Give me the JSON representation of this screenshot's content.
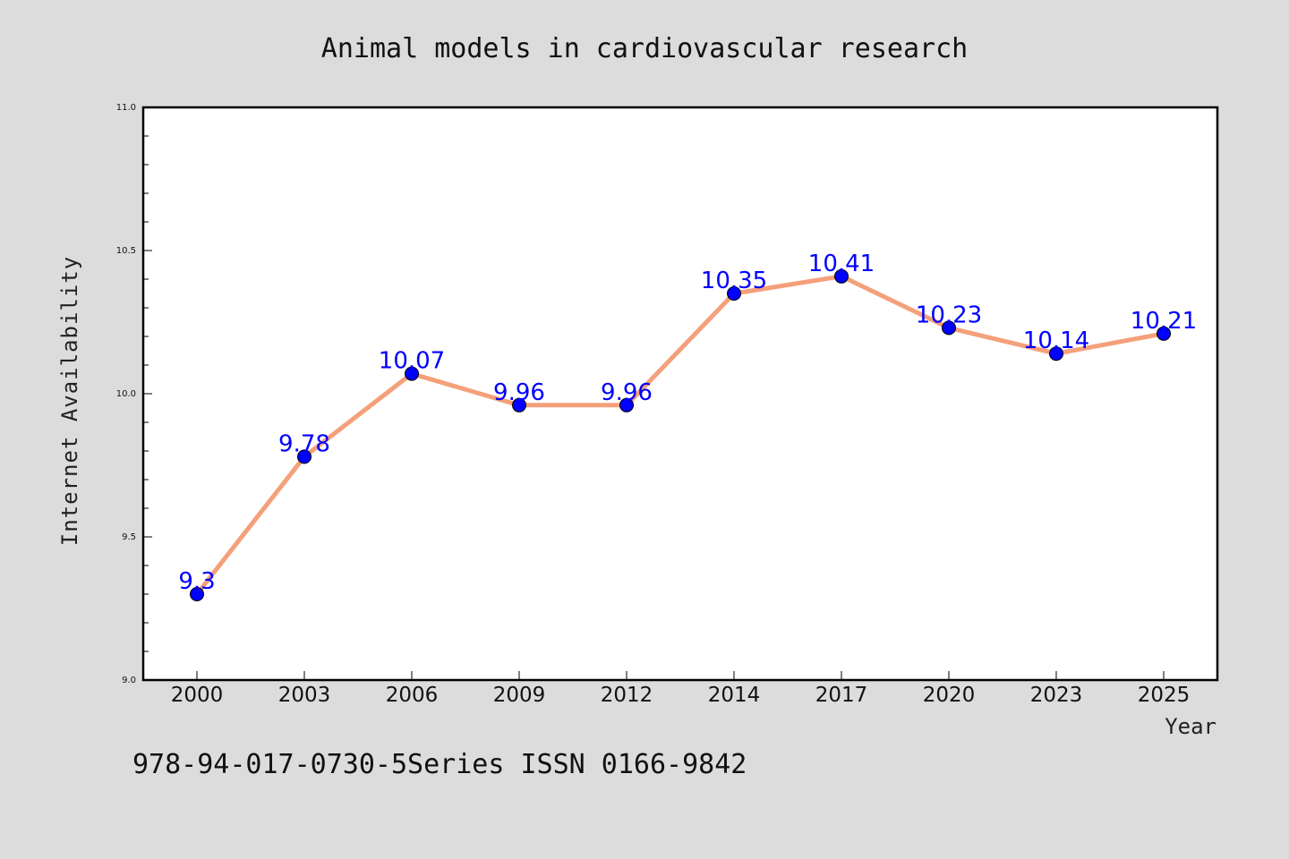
{
  "chart_data": {
    "type": "line",
    "title": "Animal models in cardiovascular research",
    "xlabel": "Year",
    "ylabel": "Internet Availability",
    "categories": [
      "2000",
      "2003",
      "2006",
      "2009",
      "2012",
      "2014",
      "2017",
      "2020",
      "2023",
      "2025"
    ],
    "series": [
      {
        "values": [
          9.3,
          9.78,
          10.07,
          9.96,
          9.96,
          10.35,
          10.41,
          10.23,
          10.14,
          10.21
        ],
        "data_labels": [
          "9.3",
          "9.78",
          "10.07",
          "9.96",
          "9.96",
          "10.35",
          "10.41",
          "10.23",
          "10.14",
          "10.21"
        ],
        "line_color": "#f4a07a",
        "marker_color": "#0000ff"
      }
    ],
    "ylim": [
      9.0,
      11.0
    ],
    "yticks": [
      "9.0",
      "9.5",
      "10.0",
      "10.5",
      "11.0"
    ],
    "ytick_values": [
      9.0,
      9.5,
      10.0,
      10.5,
      11.0
    ],
    "y_minor_step": 0.1,
    "grid": false,
    "legend": "none"
  },
  "footer": {
    "text": "978-94-017-0730-5Series ISSN 0166-9842"
  },
  "colors": {
    "background": "#dcdcdc",
    "plot_background": "#ffffff",
    "axis": "#000000",
    "label_text": "#0000ff"
  }
}
